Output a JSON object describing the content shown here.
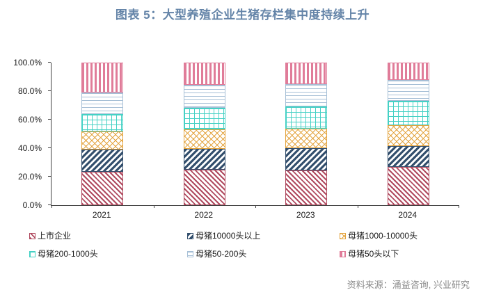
{
  "title": "图表 5：大型养殖企业生猪存栏集中度持续上升",
  "source": "资料来源：涌益咨询, 兴业研究",
  "colors": {
    "title_text": "#6484a8",
    "axis": "#3f3f3f",
    "tick_label_text": "#1a1a1a",
    "source_text": "#8a8a8a"
  },
  "chart_data": {
    "type": "bar",
    "stacked": true,
    "unit": "percent",
    "title": "图表 5：大型养殖企业生猪存栏集中度持续上升",
    "xlabel": "",
    "ylabel": "",
    "ylim": [
      0,
      100
    ],
    "grid": false,
    "legend_position": "bottom",
    "categories": [
      "2021",
      "2022",
      "2023",
      "2024"
    ],
    "y_ticks": [
      "0.0%",
      "20.0%",
      "40.0%",
      "60.0%",
      "80.0%",
      "100.0%"
    ],
    "series": [
      {
        "name": "上市企业",
        "pattern": "diag-down",
        "color": "#b04a5f",
        "values": [
          23.5,
          25.0,
          24.5,
          27.0
        ]
      },
      {
        "name": "母猪10000头以上",
        "pattern": "diag-up",
        "color": "#334f6d",
        "values": [
          15.5,
          14.5,
          15.5,
          14.5
        ]
      },
      {
        "name": "母猪1000-10000头",
        "pattern": "crosshatch",
        "color": "#e3a33d",
        "values": [
          12.5,
          13.5,
          13.5,
          14.5
        ]
      },
      {
        "name": "母猪200-1000头",
        "pattern": "grid",
        "color": "#45d1c5",
        "values": [
          12.5,
          15.5,
          16.0,
          17.0
        ]
      },
      {
        "name": "母猪50-200头",
        "pattern": "horizontal",
        "color": "#a6bfd6",
        "values": [
          15.0,
          16.0,
          15.5,
          15.0
        ]
      },
      {
        "name": "母猪50头以下",
        "pattern": "vertical",
        "color": "#e07c99",
        "values": [
          21.0,
          15.5,
          15.0,
          12.0
        ]
      }
    ]
  }
}
